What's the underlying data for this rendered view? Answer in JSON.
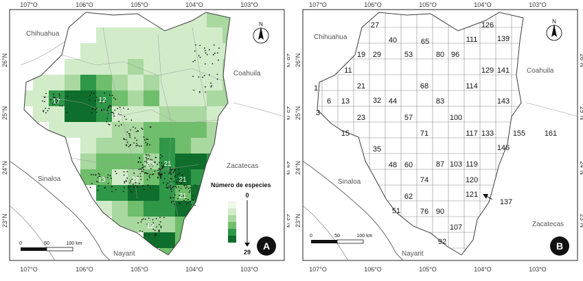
{
  "colors": {
    "c1": "#eef8ea",
    "c2": "#d2ecca",
    "c3": "#a9d8a0",
    "c4": "#6fbe6b",
    "c5": "#2f9748",
    "c6": "#0f6e2c",
    "border": "#4a4a4a",
    "points": "#111111"
  },
  "panel_a": {
    "letter": "A",
    "legend_title": "Número de especies",
    "legend_max": "29",
    "legend_min": "0",
    "places": [
      "Chihuahua",
      "Coahuila",
      "Sinaloa",
      "Zacatecas",
      "Nayarit"
    ],
    "scalebar": [
      "0",
      "50",
      "100 km"
    ],
    "ticks_top": [
      "107°O",
      "106°O",
      "105°O",
      "104°O",
      "103°O"
    ],
    "ticks_left": [
      "26°N",
      "25°N",
      "24°N",
      "23°N"
    ],
    "cell_labels": [
      {
        "v": "17"
      },
      {
        "v": "12"
      },
      {
        "v": "16"
      },
      {
        "v": "29"
      },
      {
        "v": "21"
      },
      {
        "v": "13"
      },
      {
        "v": "22"
      },
      {
        "v": "21"
      },
      {
        "v": "21"
      },
      {
        "v": "12"
      }
    ]
  },
  "panel_b": {
    "letter": "B",
    "places": [
      "Chihuahua",
      "Coahuila",
      "Sinaloa",
      "Zacatecas",
      "Nayarit"
    ],
    "scalebar": [
      "0",
      "50",
      "100 km"
    ],
    "ticks_top": [
      "107°O",
      "106°O",
      "105°O",
      "104°O",
      "103°O"
    ],
    "ticks_left": [
      "26°N",
      "25°N",
      "24°N",
      "23°N"
    ],
    "cell_numbers": [
      {
        "v": "27"
      },
      {
        "v": "40"
      },
      {
        "v": "65"
      },
      {
        "v": "111"
      },
      {
        "v": "126"
      },
      {
        "v": "139"
      },
      {
        "v": "19"
      },
      {
        "v": "29"
      },
      {
        "v": "53"
      },
      {
        "v": "80"
      },
      {
        "v": "96"
      },
      {
        "v": "11"
      },
      {
        "v": "129"
      },
      {
        "v": "141"
      },
      {
        "v": "1"
      },
      {
        "v": "21"
      },
      {
        "v": "68"
      },
      {
        "v": "114"
      },
      {
        "v": "6"
      },
      {
        "v": "13"
      },
      {
        "v": "32"
      },
      {
        "v": "44"
      },
      {
        "v": "83"
      },
      {
        "v": "143"
      },
      {
        "v": "3"
      },
      {
        "v": "23"
      },
      {
        "v": "57"
      },
      {
        "v": "100"
      },
      {
        "v": "15"
      },
      {
        "v": "71"
      },
      {
        "v": "117"
      },
      {
        "v": "133"
      },
      {
        "v": "155"
      },
      {
        "v": "161"
      },
      {
        "v": "35"
      },
      {
        "v": "146"
      },
      {
        "v": "48"
      },
      {
        "v": "60"
      },
      {
        "v": "87"
      },
      {
        "v": "103"
      },
      {
        "v": "119"
      },
      {
        "v": "74"
      },
      {
        "v": "120"
      },
      {
        "v": "62"
      },
      {
        "v": "121"
      },
      {
        "v": "137"
      },
      {
        "v": "51"
      },
      {
        "v": "76"
      },
      {
        "v": "90"
      },
      {
        "v": "107"
      },
      {
        "v": "92"
      }
    ]
  }
}
